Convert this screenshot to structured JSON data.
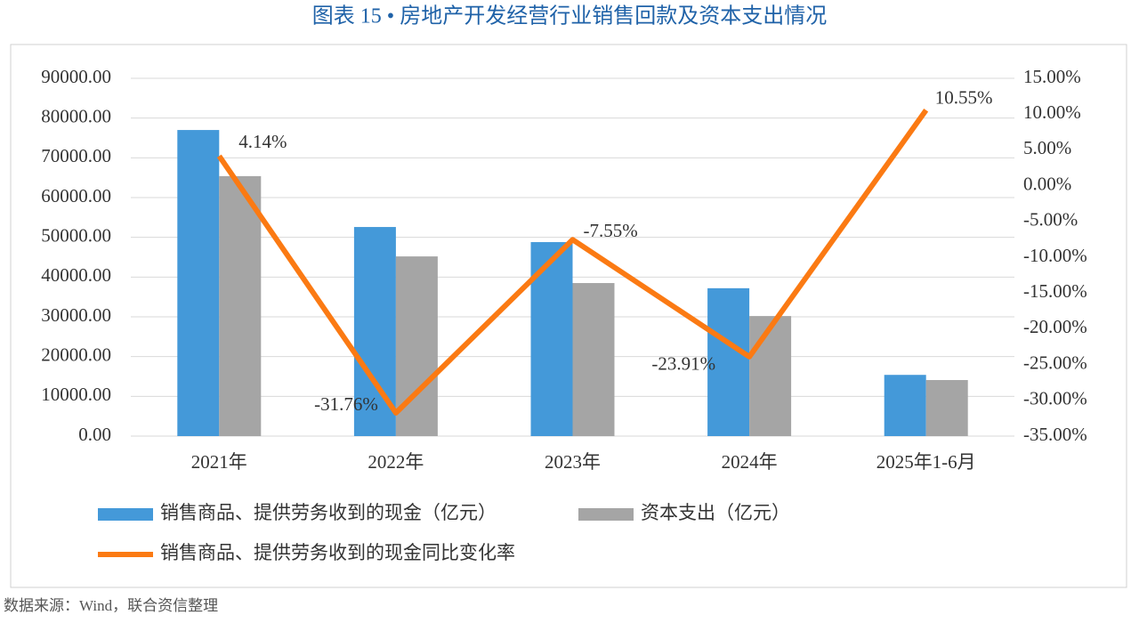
{
  "chart_data": {
    "type": "bar-line",
    "title": "图表 15 • 房地产开发经营行业销售回款及资本支出情况",
    "source": "数据来源：Wind，联合资信整理",
    "categories": [
      "2021年",
      "2022年",
      "2023年",
      "2024年",
      "2025年1-6月"
    ],
    "series": [
      {
        "name": "销售商品、提供劳务收到的现金（亿元）",
        "type": "bar",
        "color": "#4499d9",
        "values": [
          77000,
          52600,
          48800,
          37200,
          15400
        ]
      },
      {
        "name": "资本支出（亿元）",
        "type": "bar",
        "color": "#a5a5a5",
        "values": [
          65400,
          45200,
          38500,
          30200,
          14100
        ]
      },
      {
        "name": "销售商品、提供劳务收到的现金同比变化率",
        "type": "line",
        "axis": "y2",
        "color": "#fb7a13",
        "values": [
          4.14,
          -31.76,
          -7.55,
          -23.91,
          10.55
        ],
        "value_labels": [
          "4.14%",
          "-31.76%",
          "-7.55%",
          "-23.91%",
          "10.55%"
        ]
      }
    ],
    "ylim": [
      0,
      90000
    ],
    "yticks": [
      {
        "value": 0,
        "label": "0.00"
      },
      {
        "value": 10000,
        "label": "10000.00"
      },
      {
        "value": 20000,
        "label": "20000.00"
      },
      {
        "value": 30000,
        "label": "30000.00"
      },
      {
        "value": 40000,
        "label": "40000.00"
      },
      {
        "value": 50000,
        "label": "50000.00"
      },
      {
        "value": 60000,
        "label": "60000.00"
      },
      {
        "value": 70000,
        "label": "70000.00"
      },
      {
        "value": 80000,
        "label": "80000.00"
      },
      {
        "value": 90000,
        "label": "90000.00"
      }
    ],
    "y2lim": [
      -35,
      15
    ],
    "y2ticks": [
      {
        "value": -35,
        "label": "-35.00%"
      },
      {
        "value": -30,
        "label": "-30.00%"
      },
      {
        "value": -25,
        "label": "-25.00%"
      },
      {
        "value": -20,
        "label": "-20.00%"
      },
      {
        "value": -15,
        "label": "-15.00%"
      },
      {
        "value": -10,
        "label": "-10.00%"
      },
      {
        "value": -5,
        "label": "-5.00%"
      },
      {
        "value": 0,
        "label": "0.00%"
      },
      {
        "value": 5,
        "label": "5.00%"
      },
      {
        "value": 10,
        "label": "10.00%"
      },
      {
        "value": 15,
        "label": "15.00%"
      }
    ],
    "grid": true
  }
}
